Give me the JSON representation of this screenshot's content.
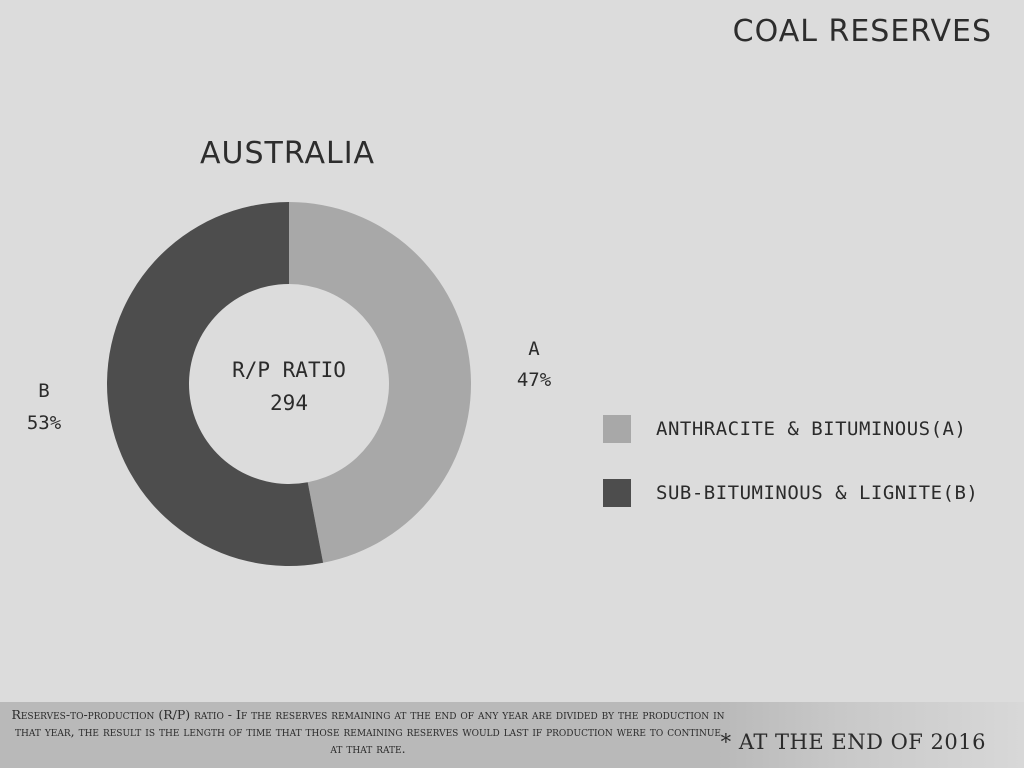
{
  "header": {
    "title": "COAL RESERVES"
  },
  "legend": {
    "items": [
      {
        "label": "ANTHRACITE & BITUMINOUS(A)",
        "color": "#a8a8a8"
      },
      {
        "label": "SUB-BITUMINOUS & LIGNITE(B)",
        "color": "#4d4d4d"
      }
    ]
  },
  "footer": {
    "note": "Reserves-to-production (R/P) ratio - If the reserves remaining at the end of any year are divided by the production in that year, the result is the length of time that those remaining reserves would last if production were to continue at that rate.",
    "as_of": "* AT THE END OF 2016"
  },
  "chart_data": {
    "type": "pie",
    "title": "AUSTRALIA",
    "center_label": "R/P RATIO",
    "center_value": "294",
    "donut": true,
    "series": [
      {
        "name": "A",
        "value": 47,
        "label": "47%",
        "color": "#a8a8a8"
      },
      {
        "name": "B",
        "value": 53,
        "label": "53%",
        "color": "#4d4d4d"
      }
    ]
  }
}
